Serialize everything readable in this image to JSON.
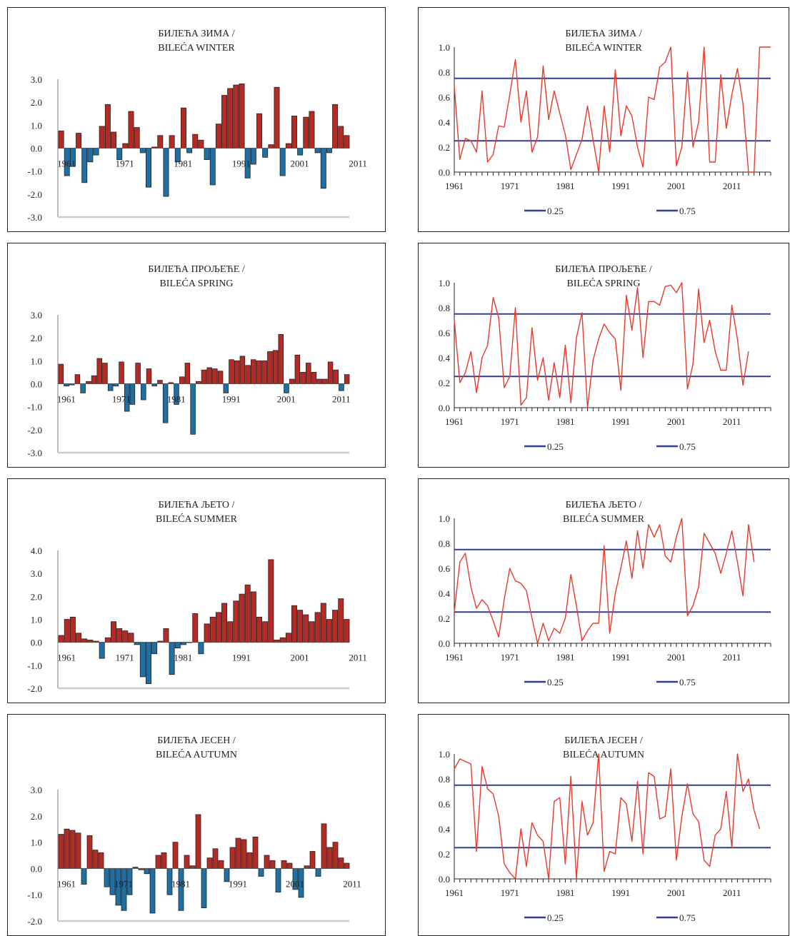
{
  "chart_data": [
    {
      "type": "bar",
      "title": "БИЛЕЋА ЗИМА /",
      "subtitle": "BILEĆA WINTER",
      "x_start": 1961,
      "x_tick_labels": [
        "1961",
        "1971",
        "1981",
        "1991",
        "2001",
        "2011"
      ],
      "ylim": [
        -3,
        3
      ],
      "y_ticks": [
        "3.0",
        "2.0",
        "1.0",
        "0.0",
        "-1.0",
        "-2.0",
        "-3.0"
      ],
      "positive_color": "#b52a24",
      "negative_color": "#1f6fa4",
      "values": [
        0.75,
        -1.2,
        -0.8,
        0.65,
        -1.5,
        -0.6,
        -0.3,
        0.95,
        1.9,
        0.7,
        -0.5,
        0.2,
        1.6,
        0.9,
        -0.2,
        -1.7,
        0.05,
        0.55,
        -2.1,
        0.55,
        -0.6,
        1.75,
        -0.2,
        0.6,
        0.35,
        -0.5,
        -1.6,
        1.05,
        2.3,
        2.6,
        2.75,
        2.8,
        -1.3,
        -0.7,
        1.5,
        -0.4,
        0.15,
        2.65,
        -1.2,
        0.2,
        1.4,
        -0.3,
        1.35,
        1.6,
        -0.2,
        -1.75,
        -0.2,
        1.9,
        0.95,
        0.55
      ]
    },
    {
      "type": "line",
      "title": "БИЛЕЋА ЗИМА /",
      "subtitle": "BILEĆA WINTER",
      "x_start": 1961,
      "x_tick_labels": [
        "1961",
        "1971",
        "1981",
        "1991",
        "2001",
        "2011"
      ],
      "ylim": [
        0,
        1
      ],
      "y_ticks": [
        "1.0",
        "0.8",
        "0.6",
        "0.4",
        "0.2",
        "0.0"
      ],
      "line_color": "#e8392b",
      "reference_color": "#333c8f",
      "reference_lines": [
        {
          "name": "0.25",
          "value": 0.25
        },
        {
          "name": "0.75",
          "value": 0.75
        }
      ],
      "legend": [
        "0.25",
        "0.75"
      ],
      "values": [
        0.69,
        0.1,
        0.27,
        0.25,
        0.16,
        0.65,
        0.08,
        0.14,
        0.37,
        0.36,
        0.62,
        0.9,
        0.4,
        0.65,
        0.16,
        0.28,
        0.85,
        0.42,
        0.65,
        0.47,
        0.3,
        0.02,
        0.14,
        0.26,
        0.53,
        0.26,
        0.0,
        0.53,
        0.16,
        0.82,
        0.29,
        0.53,
        0.45,
        0.2,
        0.04,
        0.6,
        0.58,
        0.84,
        0.88,
        1.0,
        0.05,
        0.2,
        0.8,
        0.2,
        0.4,
        1.0,
        0.08,
        0.08,
        0.78,
        0.35,
        0.62,
        0.83,
        0.55,
        0.0,
        0.0,
        1.0,
        1.0,
        1.0
      ]
    },
    {
      "type": "bar",
      "title": "БИЛЕЋА ПРОЉЕЋЕ /",
      "subtitle": "BILEĆA SPRING",
      "x_start": 1961,
      "x_tick_labels": [
        "1961",
        "1971",
        "1981",
        "1991",
        "2001",
        "2011"
      ],
      "ylim": [
        -3,
        3
      ],
      "y_ticks": [
        "3.0",
        "2.0",
        "1.0",
        "0.0",
        "-1.0",
        "-2.0",
        "-3.0"
      ],
      "positive_color": "#b52a24",
      "negative_color": "#1f6fa4",
      "values": [
        0.85,
        -0.1,
        -0.05,
        0.4,
        -0.4,
        0.1,
        0.35,
        1.1,
        0.9,
        -0.3,
        -0.1,
        0.95,
        -1.2,
        -0.9,
        0.9,
        -0.7,
        0.65,
        -0.1,
        0.15,
        -1.7,
        0.05,
        -0.9,
        0.3,
        0.9,
        -2.2,
        0.1,
        0.6,
        0.7,
        0.65,
        0.55,
        -0.4,
        1.05,
        1.0,
        1.2,
        0.8,
        1.05,
        1.0,
        1.0,
        1.4,
        1.45,
        2.15,
        -0.4,
        0.2,
        1.25,
        0.5,
        0.9,
        0.5,
        0.2,
        0.2,
        0.95,
        0.6,
        -0.3,
        0.4
      ]
    },
    {
      "type": "line",
      "title": "БИЛЕЋА ПРОЉЕЋЕ /",
      "subtitle": "BILEĆA SPRING",
      "x_start": 1961,
      "x_tick_labels": [
        "1961",
        "1971",
        "1981",
        "1991",
        "2001",
        "2011"
      ],
      "ylim": [
        0,
        1
      ],
      "y_ticks": [
        "1.0",
        "0.8",
        "0.6",
        "0.4",
        "0.2",
        "0.0"
      ],
      "line_color": "#e8392b",
      "reference_color": "#333c8f",
      "reference_lines": [
        {
          "name": "0.25",
          "value": 0.25
        },
        {
          "name": "0.75",
          "value": 0.75
        }
      ],
      "legend": [
        "0.25",
        "0.75"
      ],
      "values": [
        0.7,
        0.2,
        0.28,
        0.45,
        0.12,
        0.4,
        0.5,
        0.88,
        0.72,
        0.16,
        0.25,
        0.8,
        0.02,
        0.08,
        0.64,
        0.22,
        0.4,
        0.06,
        0.36,
        0.08,
        0.5,
        0.04,
        0.56,
        0.76,
        0.0,
        0.38,
        0.55,
        0.67,
        0.6,
        0.55,
        0.14,
        0.9,
        0.62,
        0.96,
        0.4,
        0.85,
        0.85,
        0.82,
        0.97,
        0.98,
        0.92,
        1.0,
        0.15,
        0.35,
        0.95,
        0.52,
        0.7,
        0.45,
        0.3,
        0.3,
        0.82,
        0.55,
        0.18,
        0.45
      ]
    },
    {
      "type": "bar",
      "title": "БИЛЕЋА ЉЕТО /",
      "subtitle": "BILEĆA SUMMER",
      "x_start": 1961,
      "x_tick_labels": [
        "1961",
        "1971",
        "1981",
        "1991",
        "2001",
        "2011"
      ],
      "ylim": [
        -2,
        4
      ],
      "y_ticks": [
        "4.0",
        "3.0",
        "2.0",
        "1.0",
        "0.0",
        "-1.0",
        "-2.0"
      ],
      "positive_color": "#b52a24",
      "negative_color": "#1f6fa4",
      "values": [
        0.3,
        1.0,
        1.1,
        0.4,
        0.15,
        0.1,
        0.05,
        -0.7,
        0.2,
        0.9,
        0.6,
        0.5,
        0.4,
        -0.1,
        -1.5,
        -1.8,
        -0.5,
        0.05,
        0.6,
        -1.4,
        -0.25,
        -0.1,
        0.0,
        1.25,
        -0.5,
        0.8,
        1.1,
        1.3,
        1.7,
        0.9,
        1.8,
        2.1,
        2.5,
        2.2,
        1.1,
        0.9,
        3.6,
        0.1,
        0.2,
        0.4,
        1.6,
        1.4,
        1.2,
        0.9,
        1.3,
        1.7,
        1.0,
        1.4,
        1.9,
        1.0
      ]
    },
    {
      "type": "line",
      "title": "БИЛЕЋА ЉЕТО /",
      "subtitle": "BILEĆA SUMMER",
      "x_start": 1961,
      "x_tick_labels": [
        "1961",
        "1971",
        "1981",
        "1991",
        "2001",
        "2011"
      ],
      "ylim": [
        0,
        1
      ],
      "y_ticks": [
        "1.0",
        "0.8",
        "0.6",
        "0.4",
        "0.2",
        "0.0"
      ],
      "line_color": "#e8392b",
      "reference_color": "#333c8f",
      "reference_lines": [
        {
          "name": "0.25",
          "value": 0.25
        },
        {
          "name": "0.75",
          "value": 0.75
        }
      ],
      "legend": [
        "0.25",
        "0.75"
      ],
      "values": [
        0.25,
        0.65,
        0.72,
        0.45,
        0.28,
        0.35,
        0.3,
        0.18,
        0.05,
        0.35,
        0.6,
        0.5,
        0.48,
        0.42,
        0.2,
        0.0,
        0.16,
        0.02,
        0.12,
        0.08,
        0.2,
        0.55,
        0.3,
        0.02,
        0.1,
        0.16,
        0.16,
        0.78,
        0.08,
        0.4,
        0.6,
        0.82,
        0.52,
        0.9,
        0.6,
        0.95,
        0.85,
        0.95,
        0.7,
        0.65,
        0.85,
        1.0,
        0.22,
        0.3,
        0.45,
        0.88,
        0.8,
        0.72,
        0.56,
        0.72,
        0.9,
        0.65,
        0.38,
        0.95,
        0.65
      ]
    },
    {
      "type": "bar",
      "title": "БИЛЕЋА ЈЕСЕН /",
      "subtitle": "BILEĆA AUTUMN",
      "x_start": 1961,
      "x_tick_labels": [
        "1961",
        "1971",
        "1981",
        "1991",
        "2001",
        "2011"
      ],
      "ylim": [
        -2,
        3
      ],
      "y_ticks": [
        "3.0",
        "2.0",
        "1.0",
        "0.0",
        "-1.0",
        "-2.0"
      ],
      "positive_color": "#b52a24",
      "negative_color": "#1f6fa4",
      "values": [
        1.3,
        1.5,
        1.45,
        1.35,
        -0.6,
        1.25,
        0.7,
        0.6,
        -0.7,
        -1.0,
        -1.4,
        -1.6,
        -1.0,
        0.05,
        -0.05,
        -0.2,
        -1.7,
        0.5,
        0.6,
        -1.0,
        1.0,
        -1.6,
        0.5,
        0.1,
        2.05,
        -1.5,
        0.4,
        0.75,
        0.3,
        -0.5,
        0.8,
        1.15,
        1.1,
        0.6,
        1.2,
        -0.3,
        0.5,
        0.3,
        -0.9,
        0.3,
        0.2,
        -0.8,
        -1.1,
        0.1,
        0.65,
        -0.3,
        1.7,
        0.8,
        1.0,
        0.4,
        0.2
      ]
    },
    {
      "type": "line",
      "title": "БИЛЕЋА ЈЕСЕН /",
      "subtitle": "BILEĆA AUTUMN",
      "x_start": 1961,
      "x_tick_labels": [
        "1961",
        "1971",
        "1981",
        "1991",
        "2001",
        "2011"
      ],
      "ylim": [
        0,
        1
      ],
      "y_ticks": [
        "1.0",
        "0.8",
        "0.6",
        "0.4",
        "0.2",
        "0.0"
      ],
      "line_color": "#e8392b",
      "reference_color": "#333c8f",
      "reference_lines": [
        {
          "name": "0.25",
          "value": 0.25
        },
        {
          "name": "0.75",
          "value": 0.75
        }
      ],
      "legend": [
        "0.25",
        "0.75"
      ],
      "values": [
        0.88,
        0.96,
        0.94,
        0.92,
        0.22,
        0.9,
        0.72,
        0.68,
        0.5,
        0.12,
        0.05,
        0.0,
        0.4,
        0.1,
        0.45,
        0.35,
        0.3,
        0.0,
        0.62,
        0.65,
        0.12,
        0.82,
        0.0,
        0.62,
        0.35,
        0.45,
        1.0,
        0.06,
        0.22,
        0.2,
        0.65,
        0.6,
        0.3,
        0.78,
        0.2,
        0.85,
        0.82,
        0.48,
        0.5,
        0.88,
        0.15,
        0.5,
        0.76,
        0.52,
        0.46,
        0.15,
        0.1,
        0.35,
        0.4,
        0.7,
        0.25,
        1.0,
        0.7,
        0.8,
        0.55,
        0.4
      ]
    }
  ]
}
